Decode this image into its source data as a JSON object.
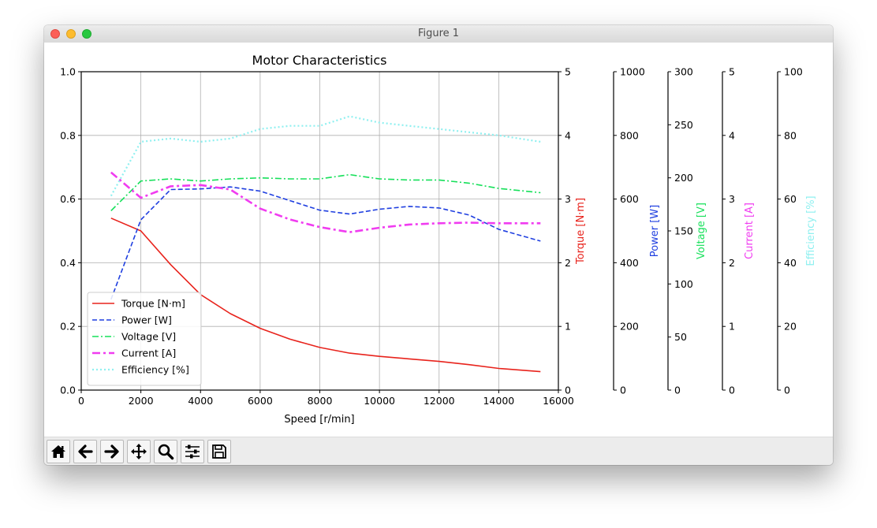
{
  "window": {
    "title": "Figure 1"
  },
  "toolbar": {
    "buttons": [
      {
        "name": "home-icon"
      },
      {
        "name": "back-icon"
      },
      {
        "name": "forward-icon"
      },
      {
        "name": "pan-icon"
      },
      {
        "name": "zoom-icon"
      },
      {
        "name": "configure-subplots-icon"
      },
      {
        "name": "save-icon"
      }
    ]
  },
  "chart_data": {
    "type": "line",
    "title": "Motor Characteristics",
    "xlabel": "Speed [r/min]",
    "xlim": [
      0,
      16000
    ],
    "x_ticks": [
      "0",
      "2000",
      "4000",
      "6000",
      "8000",
      "10000",
      "12000",
      "14000",
      "16000"
    ],
    "grid": true,
    "legend_position": "bottom-left",
    "left_axis": {
      "label": "",
      "ylim": [
        0,
        1
      ],
      "ticks": [
        "0.0",
        "0.2",
        "0.4",
        "0.6",
        "0.8",
        "1.0"
      ]
    },
    "x": [
      1000,
      2000,
      3000,
      4000,
      5000,
      6000,
      7000,
      8000,
      9000,
      10000,
      11000,
      12000,
      13000,
      14000,
      15400
    ],
    "series": [
      {
        "name": "Torque [N·m]",
        "axis_label": "Torque [N·m]",
        "color": "#e8231c",
        "dash": "solid",
        "ylim": [
          0,
          5
        ],
        "ticks": [
          "0",
          "1",
          "2",
          "3",
          "4",
          "5"
        ],
        "values": [
          2.7,
          2.5,
          1.97,
          1.5,
          1.2,
          0.97,
          0.8,
          0.67,
          0.58,
          0.53,
          0.49,
          0.45,
          0.4,
          0.34,
          0.29
        ]
      },
      {
        "name": "Power [W]",
        "axis_label": "Power [W]",
        "color": "#1f3fe0",
        "dash": "dashed",
        "ylim": [
          0,
          1000
        ],
        "ticks": [
          "0",
          "200",
          "400",
          "600",
          "800",
          "1000"
        ],
        "values": [
          285,
          535,
          630,
          632,
          638,
          625,
          595,
          565,
          553,
          568,
          577,
          572,
          550,
          505,
          468
        ]
      },
      {
        "name": "Voltage [V]",
        "axis_label": "Voltage [V]",
        "color": "#16e05a",
        "dash": "dashdot",
        "ylim": [
          0,
          300
        ],
        "ticks": [
          "0",
          "50",
          "100",
          "150",
          "200",
          "250",
          "300"
        ],
        "values": [
          169,
          197,
          199,
          197,
          199,
          200,
          199,
          199,
          203,
          199,
          198,
          198,
          195,
          190,
          186
        ]
      },
      {
        "name": "Current [A]",
        "axis_label": "Current [A]",
        "color": "#f03cf0",
        "dash": "dashdot-thick",
        "ylim": [
          0,
          5
        ],
        "ticks": [
          "0",
          "1",
          "2",
          "3",
          "4",
          "5"
        ],
        "values": [
          3.42,
          3.02,
          3.2,
          3.22,
          3.15,
          2.85,
          2.68,
          2.56,
          2.48,
          2.55,
          2.6,
          2.62,
          2.63,
          2.62,
          2.62
        ]
      },
      {
        "name": "Efficiency [%]",
        "axis_label": "Efficiency [%]",
        "color": "#8ff0f0",
        "dash": "dotted",
        "ylim": [
          0,
          100
        ],
        "ticks": [
          "0",
          "20",
          "40",
          "60",
          "80",
          "100"
        ],
        "values": [
          61,
          78,
          79,
          78,
          79,
          82,
          83,
          83,
          86,
          84,
          83,
          82,
          81,
          80,
          78
        ]
      }
    ]
  }
}
